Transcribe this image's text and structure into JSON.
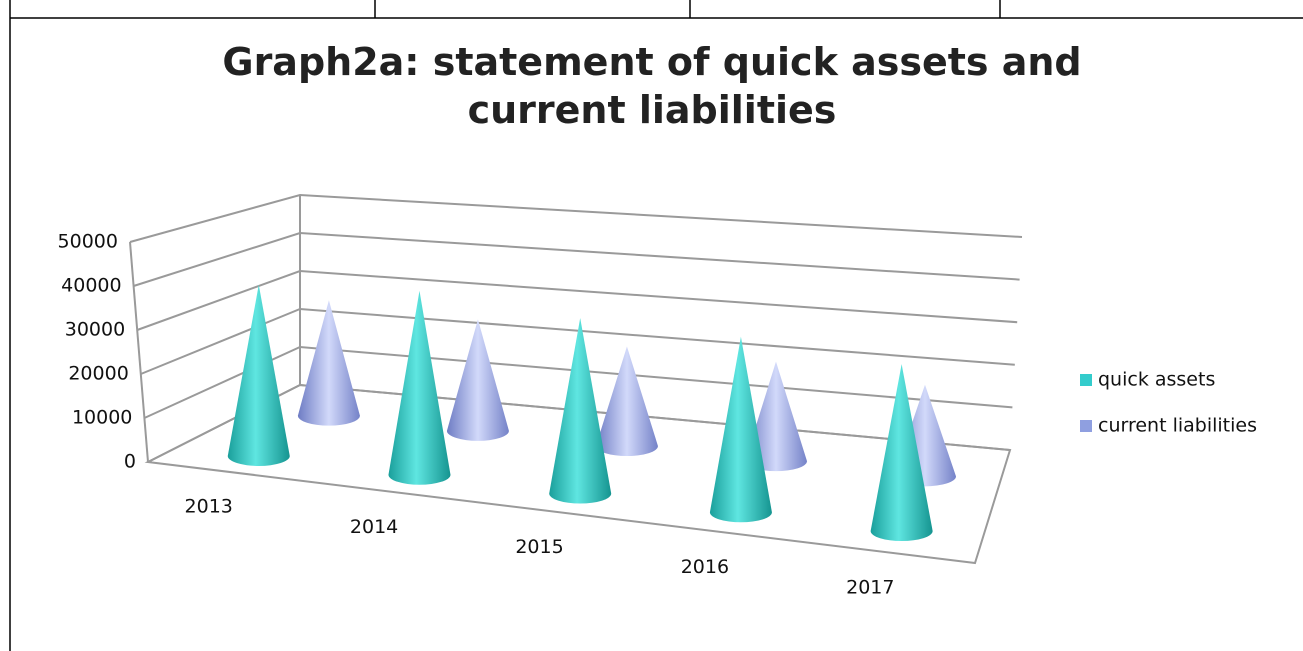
{
  "chart_data": {
    "type": "cone3d",
    "title": "Graph2a: statement of quick assets and current liabilities",
    "categories": [
      "2013",
      "2014",
      "2015",
      "2016",
      "2017"
    ],
    "series": [
      {
        "name": "quick assets",
        "color": "#33CCCC",
        "values": [
          40000,
          43000,
          41000,
          41000,
          39000
        ]
      },
      {
        "name": "current liabilities",
        "color": "#8F9FE0",
        "values": [
          29000,
          28000,
          25000,
          25000,
          23000
        ]
      }
    ],
    "ylim": [
      0,
      50000
    ],
    "yticks": [
      0,
      10000,
      20000,
      30000,
      40000,
      50000
    ],
    "grid": true,
    "legend": "right"
  }
}
